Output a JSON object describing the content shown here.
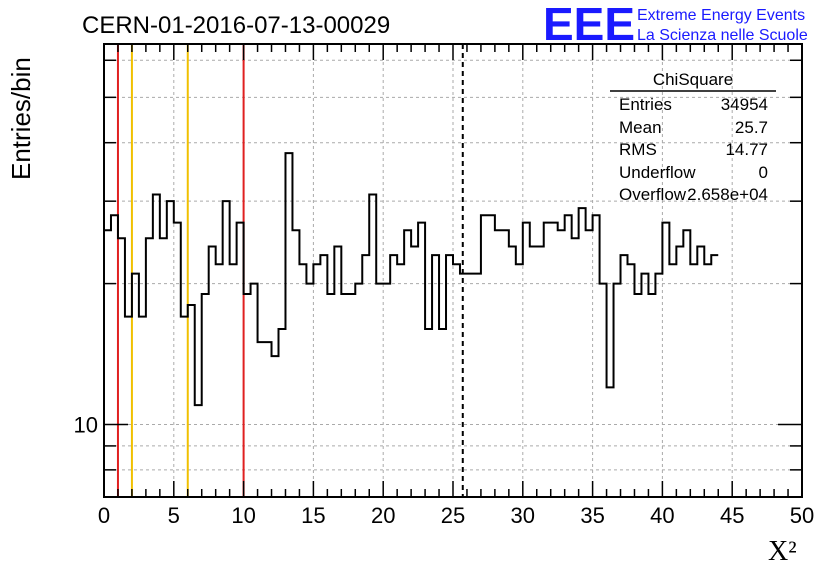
{
  "chart_data": {
    "type": "histogram",
    "title": "CERN-01-2016-07-13-00029",
    "xlabel": "X²",
    "ylabel": "Entries/bin",
    "xlim": [
      0,
      50
    ],
    "ylim": [
      7,
      65
    ],
    "yscale": "log",
    "grid": true,
    "bin_width": 0.5,
    "x_ticks": [
      "0",
      "5",
      "10",
      "15",
      "20",
      "25",
      "30",
      "35",
      "40",
      "45",
      "50"
    ],
    "y_ticks": [
      "10"
    ],
    "values": [
      26,
      28,
      25,
      17,
      21,
      17,
      25,
      31,
      25,
      30,
      27,
      17,
      18,
      11,
      19,
      24,
      22,
      30,
      22,
      27,
      19,
      20,
      15,
      15,
      14,
      16,
      38,
      26,
      22,
      20,
      22,
      23,
      19,
      24,
      19,
      19,
      20,
      23,
      31,
      20,
      20,
      23,
      22,
      26,
      24,
      27,
      16,
      23,
      16,
      23,
      22,
      21,
      21,
      21,
      28,
      28,
      26,
      26,
      24,
      22,
      27,
      24,
      24,
      27,
      27,
      26,
      28,
      25,
      29,
      26,
      28,
      20,
      12,
      20,
      23,
      22,
      19,
      21,
      19,
      21,
      27,
      22,
      24,
      26,
      22,
      24,
      22,
      23
    ],
    "vertical_lines": [
      {
        "x": 1,
        "color": "#e02020",
        "style": "solid"
      },
      {
        "x": 2,
        "color": "#f0c000",
        "style": "solid"
      },
      {
        "x": 6,
        "color": "#f0c000",
        "style": "solid"
      },
      {
        "x": 10,
        "color": "#e02020",
        "style": "solid"
      },
      {
        "x": 25.7,
        "color": "#000000",
        "style": "dashed"
      }
    ],
    "stats_box": {
      "name": "ChiSquare",
      "rows": [
        {
          "label": "Entries",
          "value": "34954"
        },
        {
          "label": "Mean",
          "value": "25.7"
        },
        {
          "label": "RMS",
          "value": "14.77"
        },
        {
          "label": "Underflow",
          "value": "0"
        },
        {
          "label": "Overflow",
          "value": "2.658e+04"
        }
      ]
    }
  },
  "logo": {
    "mark": "EEE",
    "line1": "Extreme Energy Events",
    "line2": "La Scienza nelle Scuole",
    "color": "#1a1aff"
  }
}
